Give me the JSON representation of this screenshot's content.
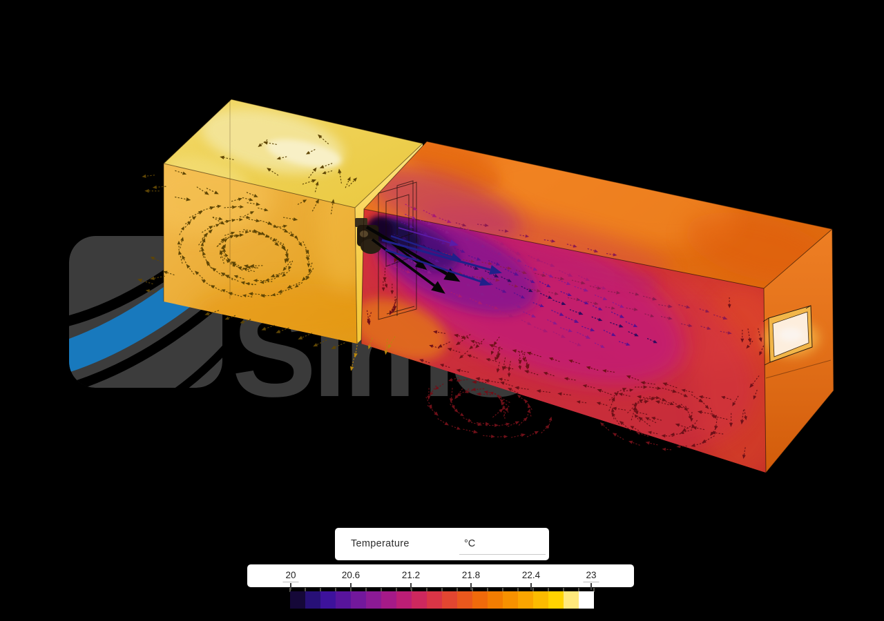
{
  "viewport": {
    "background": "#000000"
  },
  "watermark": {
    "brand_text": "SimScale",
    "icon_gray": "#3c3c3c",
    "icon_blue": "#1879bd",
    "text_color": "#3a3a3a"
  },
  "legend": {
    "title": "Temperature",
    "unit": "°C",
    "tick_labels": [
      "20",
      "20.6",
      "21.2",
      "21.8",
      "22.4",
      "23"
    ],
    "colors": [
      "#150838",
      "#271077",
      "#3d129c",
      "#58149c",
      "#72189c",
      "#8c1a95",
      "#a51a88",
      "#bc1e75",
      "#cd285e",
      "#d93546",
      "#e24631",
      "#e9581d",
      "#ef6a0b",
      "#f37d02",
      "#f79100",
      "#faa500",
      "#fcbb00",
      "#ffd300",
      "#ffe97c",
      "#ffffff"
    ]
  },
  "scene": {
    "left_box": {
      "top": "#f0d24a",
      "front": "#f0a81f",
      "side": "#ffd747"
    },
    "right_box": {
      "top": "#ee7412",
      "front": "#d93831",
      "side": "#e96c0e"
    },
    "jet_row_colors": [
      "#2d0b5e",
      "#5a1190",
      "#8c1a8c",
      "#a81a74"
    ],
    "arrows": {
      "left_box": "#5f4605",
      "right_box": "#6e1018",
      "stream": "#8c1a50",
      "jet_purple": "#5a1ca8",
      "bold_black": "#050505",
      "bold_navy": "#20208a",
      "spill_orange": "#b8860e"
    }
  }
}
